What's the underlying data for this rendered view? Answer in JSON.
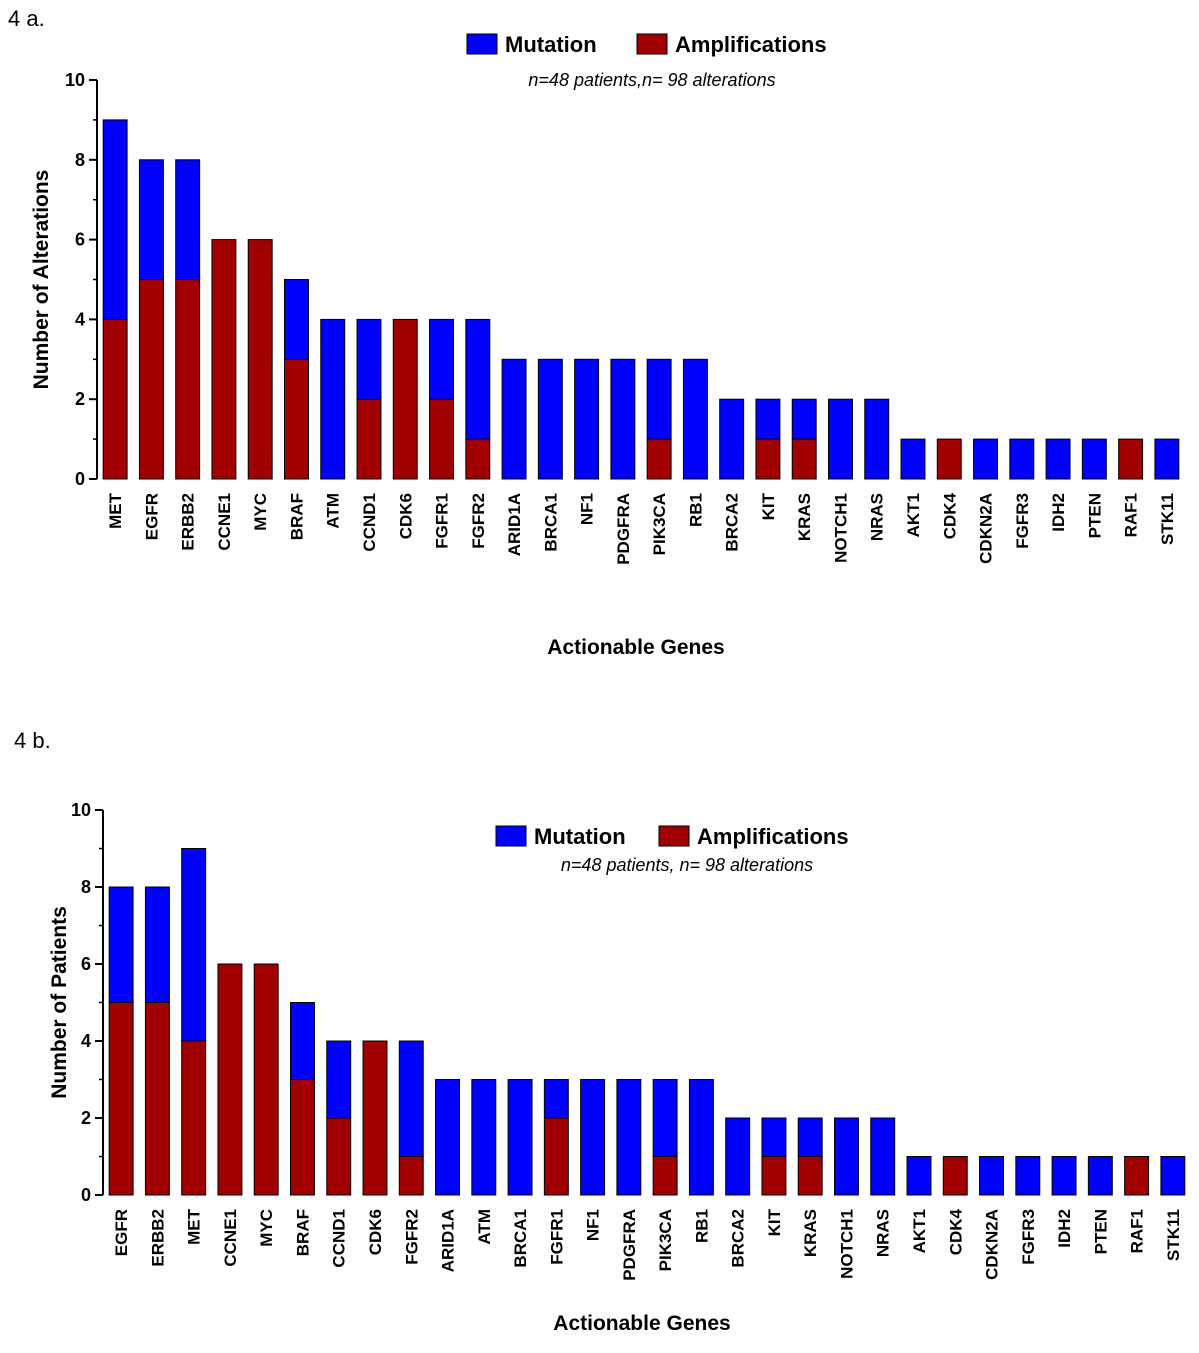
{
  "colors": {
    "mutation": "#0000ff",
    "amplifications": "#a00000"
  },
  "chart_data": [
    {
      "type": "bar",
      "stacked": true,
      "panel_label": "4 a.",
      "subtitle": "n=48 patients,n= 98 alterations",
      "xlabel": "Actionable Genes",
      "ylabel": "Number of Alterations",
      "ylim": [
        0,
        10
      ],
      "yticks": [
        0,
        2,
        4,
        6,
        8,
        10
      ],
      "legend_position": "top-center",
      "categories": [
        "MET",
        "EGFR",
        "ERBB2",
        "CCNE1",
        "MYC",
        "BRAF",
        "ATM",
        "CCND1",
        "CDK6",
        "FGFR1",
        "FGFR2",
        "ARID1A",
        "BRCA1",
        "NF1",
        "PDGFRA",
        "PIK3CA",
        "RB1",
        "BRCA2",
        "KIT",
        "KRAS",
        "NOTCH1",
        "NRAS",
        "AKT1",
        "CDK4",
        "CDKN2A",
        "FGFR3",
        "IDH2",
        "PTEN",
        "RAF1",
        "STK11"
      ],
      "series": [
        {
          "name": "Amplifications",
          "color": "#a00000",
          "values": [
            4,
            5,
            5,
            6,
            6,
            3,
            0,
            2,
            4,
            2,
            1,
            0,
            0,
            0,
            0,
            1,
            0,
            0,
            1,
            1,
            0,
            0,
            0,
            1,
            0,
            0,
            0,
            0,
            1,
            0
          ]
        },
        {
          "name": "Mutation",
          "color": "#0000ff",
          "values": [
            5,
            3,
            3,
            0,
            0,
            2,
            4,
            2,
            0,
            2,
            3,
            3,
            3,
            3,
            3,
            2,
            3,
            2,
            1,
            1,
            2,
            2,
            1,
            0,
            1,
            1,
            1,
            1,
            0,
            1
          ]
        }
      ]
    },
    {
      "type": "bar",
      "stacked": true,
      "panel_label": "4 b.",
      "subtitle": "n=48 patients, n= 98 alterations",
      "xlabel": "Actionable Genes",
      "ylabel": "Number of Patients",
      "ylim": [
        0,
        10
      ],
      "yticks": [
        0,
        2,
        4,
        6,
        8,
        10
      ],
      "legend_position": "top-center",
      "categories": [
        "EGFR",
        "ERBB2",
        "MET",
        "CCNE1",
        "MYC",
        "BRAF",
        "CCND1",
        "CDK6",
        "FGFR2",
        "ARID1A",
        "ATM",
        "BRCA1",
        "FGFR1",
        "NF1",
        "PDGFRA",
        "PIK3CA",
        "RB1",
        "BRCA2",
        "KIT",
        "KRAS",
        "NOTCH1",
        "NRAS",
        "AKT1",
        "CDK4",
        "CDKN2A",
        "FGFR3",
        "IDH2",
        "PTEN",
        "RAF1",
        "STK11"
      ],
      "series": [
        {
          "name": "Amplifications",
          "color": "#a00000",
          "values": [
            5,
            5,
            4,
            6,
            6,
            3,
            2,
            4,
            1,
            0,
            0,
            0,
            2,
            0,
            0,
            1,
            0,
            0,
            1,
            1,
            0,
            0,
            0,
            1,
            0,
            0,
            0,
            0,
            1,
            0
          ]
        },
        {
          "name": "Mutation",
          "color": "#0000ff",
          "values": [
            3,
            3,
            5,
            0,
            0,
            2,
            2,
            0,
            3,
            3,
            3,
            3,
            1,
            3,
            3,
            2,
            3,
            2,
            1,
            1,
            2,
            2,
            1,
            0,
            1,
            1,
            1,
            1,
            0,
            1
          ]
        }
      ]
    }
  ]
}
